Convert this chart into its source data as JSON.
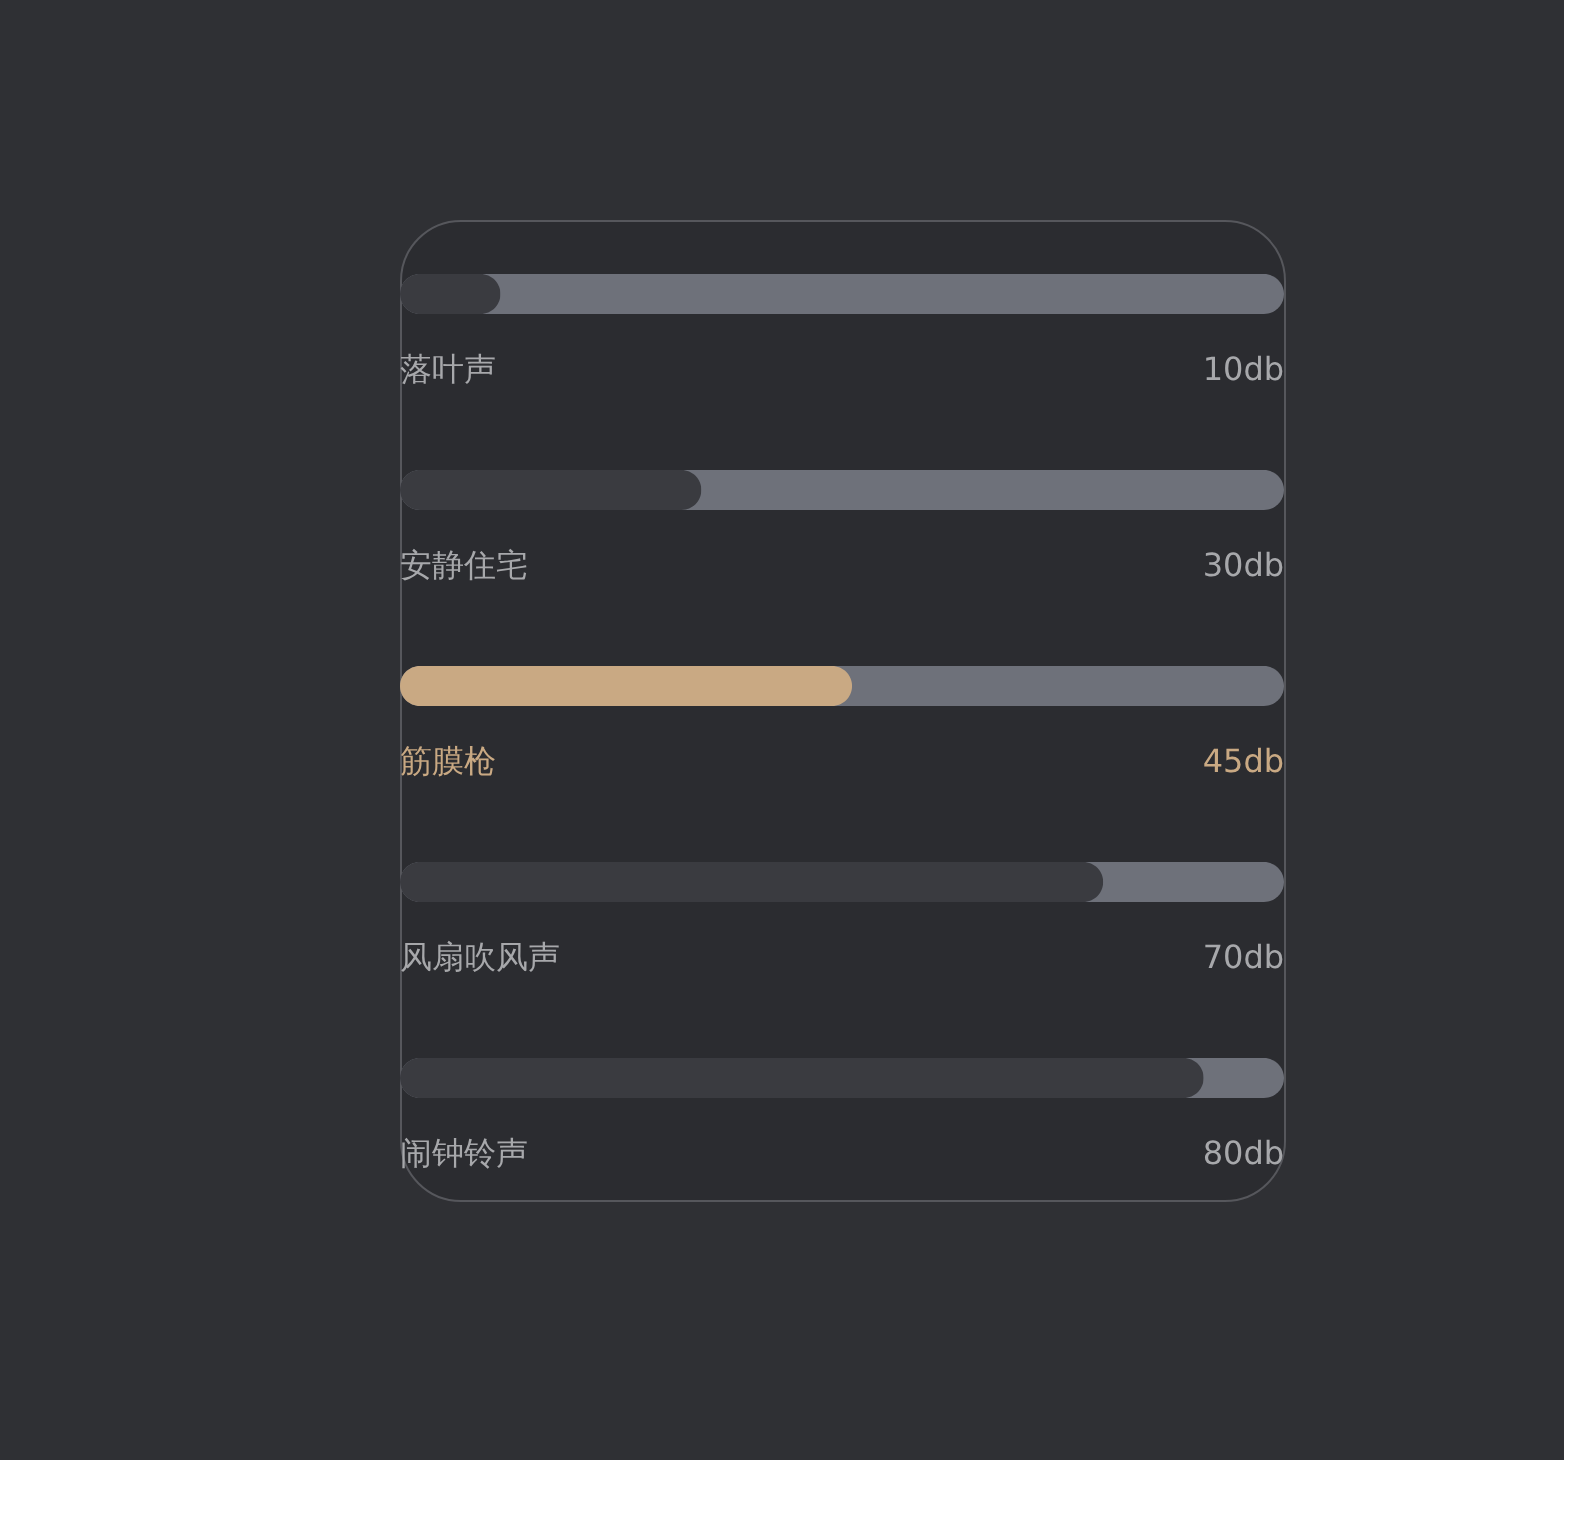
{
  "chart_data": {
    "type": "bar",
    "orientation": "horizontal",
    "categories": [
      "落叶声",
      "安静住宅",
      "筋膜枪",
      "风扇吹风声",
      "闹钟铃声"
    ],
    "values": [
      10,
      30,
      45,
      70,
      80
    ],
    "value_labels": [
      "10db",
      "30db",
      "45db",
      "70db",
      "80db"
    ],
    "colors": [
      "#3a3b40",
      "#3a3b40",
      "#c9a983",
      "#3a3b40",
      "#3a3b40"
    ],
    "tick_labels": false
  }
}
